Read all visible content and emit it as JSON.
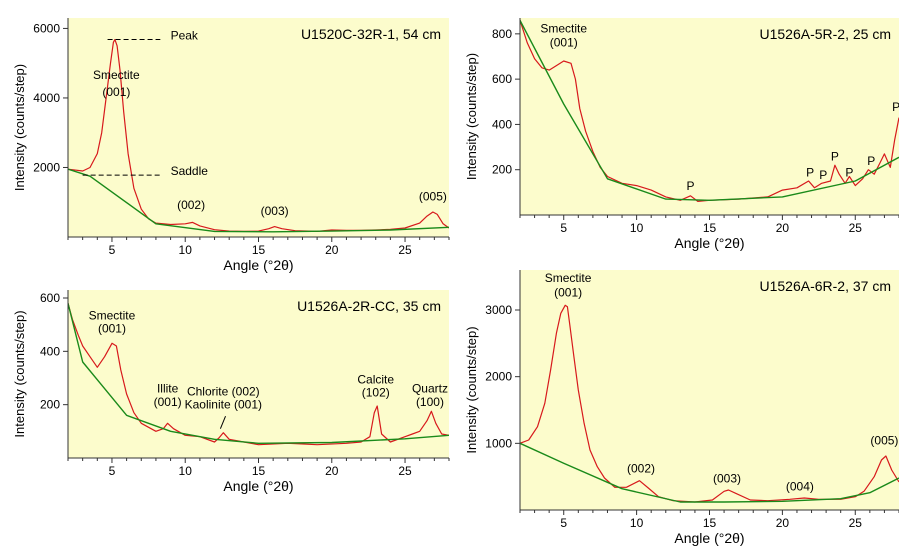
{
  "style": {
    "plot_bg": "#fcfccc",
    "data_color": "#d7191c",
    "baseline_color": "#1a8a1a",
    "axis_color": "#333333"
  },
  "chart_data": [
    {
      "type": "line",
      "title": "U1520C-32R-1, 54 cm",
      "xlabel": "Angle (°2θ)",
      "ylabel": "Intensity (counts/step)",
      "xlim": [
        2,
        28
      ],
      "ylim": [
        0,
        6300
      ],
      "xticks": [
        5,
        10,
        15,
        20,
        25
      ],
      "yticks": [
        2000,
        4000,
        6000
      ],
      "ytick_labels": [
        "2000",
        "4000",
        "6000"
      ],
      "series": [
        {
          "role": "pattern",
          "x": [
            2,
            3,
            3.5,
            4,
            4.3,
            4.6,
            4.9,
            5.1,
            5.2,
            5.35,
            5.55,
            5.8,
            6.1,
            6.5,
            7,
            7.5,
            8,
            9,
            10,
            10.5,
            11,
            12,
            13,
            14,
            15,
            15.7,
            16.1,
            16.6,
            17.5,
            19,
            20,
            21,
            22,
            23,
            24,
            25,
            26,
            26.5,
            26.9,
            27.2,
            27.6,
            28
          ],
          "y": [
            1950,
            1900,
            2000,
            2400,
            3000,
            4000,
            5000,
            5600,
            5680,
            5500,
            4800,
            3600,
            2400,
            1400,
            800,
            520,
            400,
            360,
            380,
            420,
            320,
            210,
            170,
            160,
            170,
            240,
            300,
            240,
            180,
            160,
            200,
            190,
            190,
            200,
            220,
            260,
            400,
            600,
            720,
            650,
            380,
            260
          ]
        },
        {
          "role": "baseline",
          "x": [
            2,
            3.5,
            8,
            12,
            16,
            20,
            24,
            28
          ],
          "y": [
            1950,
            1750,
            380,
            160,
            150,
            170,
            200,
            280
          ]
        }
      ],
      "annotations": [
        {
          "text": "Smectite",
          "x": 5.3,
          "y": 4550
        },
        {
          "text": "(001)",
          "x": 5.3,
          "y": 4050
        },
        {
          "text": "Peak",
          "x": 9.0,
          "y": 5680
        },
        {
          "text": "Saddle",
          "x": 9.0,
          "y": 1780
        },
        {
          "text": "(002)",
          "x": 10.4,
          "y": 800
        },
        {
          "text": "(003)",
          "x": 16.1,
          "y": 630
        },
        {
          "text": "(005)",
          "x": 26.9,
          "y": 1050
        }
      ],
      "guides": [
        {
          "x1": 4.7,
          "x2": 8.3,
          "y": 5680
        },
        {
          "x1": 3.0,
          "x2": 8.3,
          "y": 1780
        }
      ]
    },
    {
      "type": "line",
      "title": "U1526A-5R-2, 25 cm",
      "xlabel": "Angle (°2θ)",
      "ylabel": "Intensity (counts/step)",
      "xlim": [
        2,
        28
      ],
      "ylim": [
        0,
        870
      ],
      "xticks": [
        5,
        10,
        15,
        20,
        25
      ],
      "yticks": [
        200,
        400,
        600,
        800
      ],
      "ytick_labels": [
        "200",
        "400",
        "600",
        "800"
      ],
      "series": [
        {
          "role": "pattern",
          "x": [
            2,
            2.5,
            3,
            3.5,
            4,
            4.5,
            5,
            5.5,
            5.8,
            6.1,
            6.5,
            7,
            7.5,
            8,
            9,
            10,
            11,
            12,
            13,
            13.7,
            14.2,
            15,
            17,
            19,
            20,
            21,
            21.8,
            22.2,
            22.7,
            23.3,
            23.6,
            23.9,
            24.3,
            24.6,
            25,
            25.5,
            25.9,
            26.3,
            26.7,
            27,
            27.4,
            27.7,
            28
          ],
          "y": [
            860,
            760,
            690,
            650,
            640,
            660,
            680,
            670,
            600,
            470,
            370,
            280,
            210,
            170,
            140,
            130,
            110,
            80,
            65,
            85,
            60,
            65,
            70,
            80,
            110,
            120,
            150,
            120,
            140,
            150,
            220,
            180,
            140,
            170,
            130,
            160,
            200,
            180,
            230,
            270,
            210,
            330,
            430
          ]
        },
        {
          "role": "baseline",
          "x": [
            2,
            5,
            8,
            12,
            15,
            20,
            25,
            28
          ],
          "y": [
            860,
            490,
            160,
            70,
            65,
            80,
            150,
            255
          ]
        }
      ],
      "annotations": [
        {
          "text": "Smectite",
          "x": 5.0,
          "y": 805
        },
        {
          "text": "(001)",
          "x": 5.0,
          "y": 745
        },
        {
          "text": "P",
          "x": 13.7,
          "y": 110
        },
        {
          "text": "P",
          "x": 21.9,
          "y": 170
        },
        {
          "text": "P",
          "x": 22.8,
          "y": 160
        },
        {
          "text": "P",
          "x": 23.6,
          "y": 240
        },
        {
          "text": "P",
          "x": 24.6,
          "y": 170
        },
        {
          "text": "P",
          "x": 26.1,
          "y": 220
        },
        {
          "text": "P",
          "x": 27.8,
          "y": 460
        }
      ]
    },
    {
      "type": "line",
      "title": "U1526A-2R-CC, 35 cm",
      "xlabel": "Angle (°2θ)",
      "ylabel": "Intensity (counts/step)",
      "xlim": [
        2,
        28
      ],
      "ylim": [
        0,
        630
      ],
      "xticks": [
        5,
        10,
        15,
        20,
        25
      ],
      "yticks": [
        200,
        400,
        600
      ],
      "ytick_labels": [
        "200",
        "400",
        "600"
      ],
      "series": [
        {
          "role": "pattern",
          "x": [
            2,
            2.3,
            2.7,
            3,
            3.5,
            4,
            4.5,
            5,
            5.3,
            5.6,
            6,
            6.5,
            7,
            8,
            8.5,
            8.8,
            9.2,
            10,
            11,
            12,
            12.3,
            12.6,
            13,
            14,
            15,
            17,
            19,
            21,
            22,
            22.6,
            22.9,
            23.1,
            23.4,
            24,
            25,
            25.5,
            26,
            26.5,
            26.8,
            27.1,
            27.5,
            28
          ],
          "y": [
            580,
            520,
            460,
            420,
            380,
            340,
            380,
            430,
            420,
            330,
            240,
            170,
            130,
            100,
            110,
            130,
            110,
            85,
            80,
            60,
            75,
            95,
            70,
            60,
            50,
            55,
            50,
            55,
            60,
            80,
            170,
            195,
            90,
            60,
            80,
            90,
            100,
            140,
            175,
            130,
            90,
            85
          ]
        },
        {
          "role": "baseline",
          "x": [
            2,
            3,
            6,
            9,
            12,
            15,
            20,
            25,
            28
          ],
          "y": [
            580,
            360,
            160,
            100,
            70,
            55,
            58,
            72,
            85
          ]
        }
      ],
      "annotations": [
        {
          "text": "Smectite",
          "x": 5.0,
          "y": 520
        },
        {
          "text": "(001)",
          "x": 5.0,
          "y": 470
        },
        {
          "text": "Illite",
          "x": 8.8,
          "y": 245
        },
        {
          "text": "(001)",
          "x": 8.8,
          "y": 195
        },
        {
          "text": "Chlorite (002)",
          "x": 12.6,
          "y": 235
        },
        {
          "text": "Kaolinite (001)",
          "x": 12.6,
          "y": 185
        },
        {
          "text": "Calcite",
          "x": 23.0,
          "y": 280
        },
        {
          "text": "(102)",
          "x": 23.0,
          "y": 230
        },
        {
          "text": "Quartz",
          "x": 26.7,
          "y": 245
        },
        {
          "text": "(100)",
          "x": 26.7,
          "y": 195
        }
      ],
      "pointer": {
        "x1": 12.75,
        "y1": 157,
        "x2": 12.4,
        "y2": 110
      }
    },
    {
      "type": "line",
      "title": "U1526A-6R-2, 37 cm",
      "xlabel": "Angle (°2θ)",
      "ylabel": "Intensity (counts/step)",
      "xlim": [
        2,
        28
      ],
      "ylim": [
        0,
        3600
      ],
      "xticks": [
        5,
        10,
        15,
        20,
        25
      ],
      "yticks": [
        1000,
        2000,
        3000
      ],
      "ytick_labels": [
        "1000",
        "2000",
        "3000"
      ],
      "series": [
        {
          "role": "pattern",
          "x": [
            2,
            2.6,
            3.2,
            3.7,
            4.1,
            4.5,
            4.8,
            5.1,
            5.25,
            5.4,
            5.7,
            6,
            6.4,
            6.8,
            7.3,
            7.8,
            8.5,
            9.3,
            10.2,
            10.8,
            11.5,
            12.5,
            14,
            15.2,
            16,
            16.3,
            16.8,
            17.8,
            19,
            20.5,
            21.5,
            22.5,
            24,
            25,
            25.6,
            26.3,
            26.8,
            27.1,
            27.5,
            28
          ],
          "y": [
            1000,
            1050,
            1250,
            1600,
            2100,
            2650,
            2950,
            3070,
            3050,
            2800,
            2300,
            1800,
            1300,
            900,
            650,
            480,
            340,
            340,
            440,
            330,
            200,
            140,
            120,
            150,
            280,
            300,
            250,
            150,
            140,
            160,
            180,
            160,
            160,
            200,
            280,
            500,
            750,
            810,
            600,
            420
          ]
        },
        {
          "role": "baseline",
          "x": [
            2,
            5,
            9,
            13,
            16,
            20,
            24,
            26,
            28
          ],
          "y": [
            1000,
            700,
            320,
            120,
            120,
            130,
            170,
            260,
            480
          ]
        }
      ],
      "annotations": [
        {
          "text": "Smectite",
          "x": 5.3,
          "y": 3420
        },
        {
          "text": "(001)",
          "x": 5.3,
          "y": 3200
        },
        {
          "text": "(002)",
          "x": 10.3,
          "y": 560
        },
        {
          "text": "(003)",
          "x": 16.2,
          "y": 410
        },
        {
          "text": "(004)",
          "x": 21.2,
          "y": 290
        },
        {
          "text": "(005)",
          "x": 27.0,
          "y": 980
        }
      ]
    }
  ]
}
